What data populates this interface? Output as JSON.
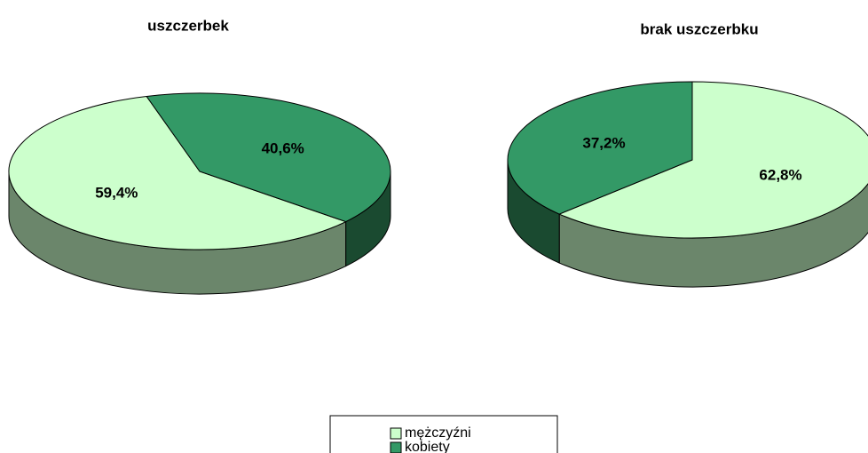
{
  "chart_data": [
    {
      "type": "pie",
      "title": "uszczerbek",
      "values": [
        59.4,
        40.6
      ],
      "value_labels": [
        "59,4%",
        "40,6%"
      ]
    },
    {
      "type": "pie",
      "title": "brak uszczerbku",
      "values": [
        62.8,
        37.2
      ],
      "value_labels": [
        "62,8%",
        "37,2%"
      ]
    }
  ],
  "legend": {
    "categories": [
      "mężczyźni",
      "kobiety"
    ],
    "colors": [
      "#ccffcc",
      "#339966"
    ],
    "side_colors": [
      "#6b866b",
      "#1a4a30"
    ]
  }
}
